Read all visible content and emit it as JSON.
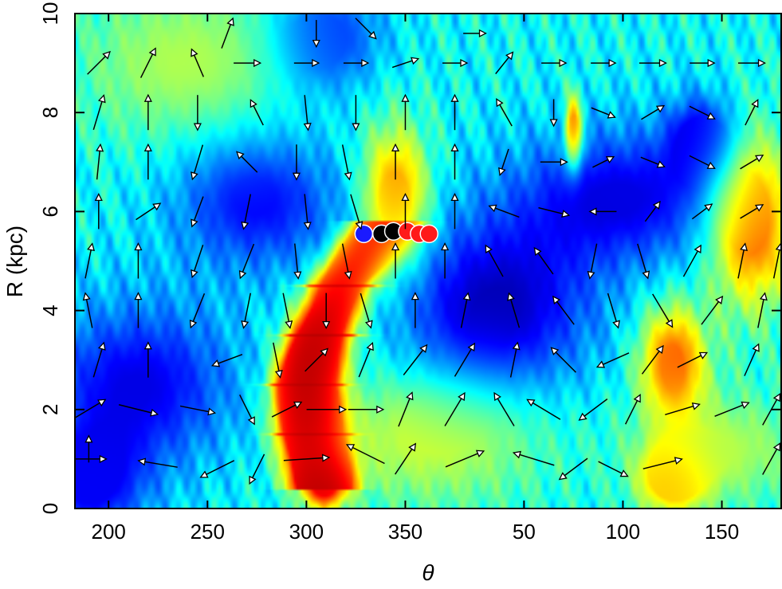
{
  "chart_data": {
    "type": "heatmap",
    "title": "",
    "xlabel": "θ",
    "ylabel": "R (kpc)",
    "x_range_deg": [
      183,
      180
    ],
    "x_axis_wraps_at": 360,
    "ylim": [
      0,
      10
    ],
    "x_tick_labels": [
      "200",
      "250",
      "300",
      "350",
      "50",
      "100",
      "150"
    ],
    "x_tick_values_deg": [
      200,
      250,
      300,
      350,
      50,
      100,
      150
    ],
    "y_tick_labels": [
      "0",
      "2",
      "4",
      "6",
      "8",
      "10"
    ],
    "y_tick_values": [
      0,
      2,
      4,
      6,
      8,
      10
    ],
    "colormap": "jet",
    "background_level": 0.38,
    "features": [
      {
        "kind": "ridge",
        "path": [
          [
            308,
            0.4
          ],
          [
            303,
            1.5
          ],
          [
            300,
            2.5
          ],
          [
            308,
            3.5
          ],
          [
            317,
            4.5
          ],
          [
            330,
            5.3
          ],
          [
            340,
            5.8
          ]
        ],
        "width_deg": 10,
        "level": 0.97
      },
      {
        "kind": "blob",
        "theta": 300,
        "R": 2.3,
        "sigma_deg": 9,
        "sigma_R": 0.8,
        "level": 0.99
      },
      {
        "kind": "blob",
        "theta": 309,
        "R": 0.5,
        "sigma_deg": 8,
        "sigma_R": 0.35,
        "level": 0.95
      },
      {
        "kind": "blob",
        "theta": 190,
        "R": 0.5,
        "sigma_deg": 20,
        "sigma_R": 0.8,
        "level": 0.12
      },
      {
        "kind": "blob",
        "theta": 215,
        "R": 2.5,
        "sigma_deg": 35,
        "sigma_R": 1.2,
        "level": 0.1
      },
      {
        "kind": "blob",
        "theta": 275,
        "R": 6.2,
        "sigma_deg": 30,
        "sigma_R": 1.0,
        "level": 0.12
      },
      {
        "kind": "blob",
        "theta": 35,
        "R": 4.0,
        "sigma_deg": 35,
        "sigma_R": 1.3,
        "level": 0.05
      },
      {
        "kind": "blob",
        "theta": 100,
        "R": 6.3,
        "sigma_deg": 40,
        "sigma_R": 1.0,
        "level": 0.1
      },
      {
        "kind": "blob",
        "theta": 140,
        "R": 7.5,
        "sigma_deg": 12,
        "sigma_R": 0.6,
        "level": 0.1
      },
      {
        "kind": "blob",
        "theta": 310,
        "R": 9.5,
        "sigma_deg": 20,
        "sigma_R": 0.8,
        "level": 0.15
      },
      {
        "kind": "blob",
        "theta": 345,
        "R": 6.3,
        "sigma_deg": 12,
        "sigma_R": 1.0,
        "level": 0.78
      },
      {
        "kind": "blob",
        "theta": 165,
        "R": 5.8,
        "sigma_deg": 15,
        "sigma_R": 1.2,
        "level": 0.85
      },
      {
        "kind": "blob",
        "theta": 125,
        "R": 3.0,
        "sigma_deg": 12,
        "sigma_R": 0.8,
        "level": 0.8
      },
      {
        "kind": "blob",
        "theta": 125,
        "R": 0.6,
        "sigma_deg": 12,
        "sigma_R": 0.5,
        "level": 0.72
      },
      {
        "kind": "blob",
        "theta": 75,
        "R": 7.6,
        "sigma_deg": 3,
        "sigma_R": 0.5,
        "level": 0.9
      },
      {
        "kind": "blob",
        "theta": 5,
        "R": 1.5,
        "sigma_deg": 40,
        "sigma_R": 1.0,
        "level": 0.6
      },
      {
        "kind": "blob",
        "theta": 240,
        "R": 9.0,
        "sigma_deg": 40,
        "sigma_R": 1.2,
        "level": 0.55
      },
      {
        "kind": "blob",
        "theta": 150,
        "R": 1.2,
        "sigma_deg": 30,
        "sigma_R": 0.8,
        "level": 0.55
      }
    ],
    "markers": [
      {
        "color": "#1a1aff",
        "theta": 329,
        "R": 5.55
      },
      {
        "color": "#000000",
        "theta": 338,
        "R": 5.55
      },
      {
        "color": "#000000",
        "theta": 344,
        "R": 5.6
      },
      {
        "color": "#ff1a1a",
        "theta": 351,
        "R": 5.6
      },
      {
        "color": "#ff1a1a",
        "theta": 357,
        "R": 5.55
      },
      {
        "color": "#ff1a1a",
        "theta": 362,
        "R": 5.55
      }
    ],
    "vector_field": {
      "description": "velocity arrows, direction in plot frame",
      "arrows": [
        [
          190,
          1.0,
          1.0,
          0.0
        ],
        [
          190,
          1.2,
          0.0,
          0.6
        ],
        [
          225,
          0.9,
          -1.2,
          0.2
        ],
        [
          255,
          0.8,
          -1.0,
          -0.5
        ],
        [
          275,
          0.8,
          -0.4,
          -0.8
        ],
        [
          300,
          1.0,
          1.5,
          0.1
        ],
        [
          330,
          1.1,
          -1.2,
          0.6
        ],
        [
          350,
          1.0,
          0.6,
          0.9
        ],
        [
          20,
          1.0,
          1.2,
          0.5
        ],
        [
          55,
          1.0,
          -1.3,
          0.4
        ],
        [
          75,
          0.8,
          -0.8,
          -0.6
        ],
        [
          95,
          0.8,
          0.8,
          -0.4
        ],
        [
          120,
          0.9,
          1.2,
          0.3
        ],
        [
          150,
          0.9,
          0.0,
          0.0
        ],
        [
          175,
          1.0,
          0.5,
          0.9
        ],
        [
          190,
          2.0,
          1.0,
          0.6
        ],
        [
          215,
          2.0,
          1.2,
          -0.3
        ],
        [
          245,
          2.0,
          1.0,
          -0.2
        ],
        [
          270,
          2.0,
          0.4,
          -0.8
        ],
        [
          290,
          2.0,
          0.8,
          0.4
        ],
        [
          310,
          2.0,
          1.2,
          0.0
        ],
        [
          330,
          2.0,
          1.0,
          0.0
        ],
        [
          350,
          2.0,
          0.4,
          1.0
        ],
        [
          15,
          2.0,
          0.6,
          1.0
        ],
        [
          40,
          2.0,
          -0.6,
          1.0
        ],
        [
          60,
          2.0,
          -1.0,
          0.6
        ],
        [
          85,
          2.0,
          -0.8,
          -0.6
        ],
        [
          105,
          2.0,
          0.4,
          0.8
        ],
        [
          130,
          2.0,
          1.0,
          0.3
        ],
        [
          155,
          2.0,
          1.0,
          0.4
        ],
        [
          175,
          2.0,
          0.5,
          0.9
        ],
        [
          195,
          3.0,
          0.3,
          1.0
        ],
        [
          220,
          3.0,
          0.0,
          1.0
        ],
        [
          260,
          3.0,
          -0.8,
          -0.3
        ],
        [
          285,
          3.0,
          0.2,
          -1.0
        ],
        [
          305,
          3.0,
          0.6,
          0.6
        ],
        [
          330,
          3.0,
          0.4,
          1.0
        ],
        [
          355,
          3.0,
          0.7,
          0.9
        ],
        [
          20,
          3.0,
          0.6,
          1.0
        ],
        [
          45,
          3.0,
          0.2,
          1.0
        ],
        [
          70,
          3.0,
          -0.7,
          0.7
        ],
        [
          95,
          3.0,
          -0.9,
          -0.4
        ],
        [
          115,
          3.0,
          0.6,
          0.8
        ],
        [
          135,
          3.0,
          0.8,
          0.4
        ],
        [
          165,
          3.0,
          0.4,
          0.9
        ],
        [
          190,
          4.0,
          -0.2,
          1.0
        ],
        [
          215,
          4.0,
          0.0,
          1.0
        ],
        [
          245,
          4.0,
          -0.4,
          -1.0
        ],
        [
          270,
          4.0,
          -0.2,
          -1.0
        ],
        [
          290,
          4.0,
          0.2,
          -1.0
        ],
        [
          310,
          4.0,
          0.0,
          -1.0
        ],
        [
          330,
          4.0,
          0.3,
          -1.0
        ],
        [
          355,
          4.0,
          0.0,
          1.0
        ],
        [
          20,
          4.0,
          0.2,
          1.0
        ],
        [
          45,
          4.0,
          -0.3,
          1.0
        ],
        [
          70,
          4.0,
          -0.6,
          0.8
        ],
        [
          95,
          4.0,
          0.3,
          -1.0
        ],
        [
          120,
          4.0,
          0.6,
          -1.0
        ],
        [
          145,
          4.0,
          0.6,
          0.8
        ],
        [
          170,
          4.0,
          0.2,
          1.0
        ],
        [
          190,
          5.0,
          0.2,
          1.0
        ],
        [
          215,
          5.0,
          0.0,
          1.0
        ],
        [
          245,
          5.0,
          -0.3,
          -0.9
        ],
        [
          270,
          5.0,
          -0.4,
          -1.0
        ],
        [
          295,
          5.0,
          0.1,
          -1.0
        ],
        [
          320,
          5.0,
          0.2,
          -1.0
        ],
        [
          345,
          5.0,
          0.0,
          1.0
        ],
        [
          10,
          5.0,
          0.0,
          1.0
        ],
        [
          35,
          5.0,
          -0.5,
          0.9
        ],
        [
          60,
          5.0,
          -0.5,
          0.7
        ],
        [
          85,
          5.0,
          -0.2,
          -1.0
        ],
        [
          110,
          5.0,
          0.3,
          -1.0
        ],
        [
          135,
          5.0,
          0.5,
          0.9
        ],
        [
          160,
          5.0,
          0.2,
          1.0
        ],
        [
          178,
          5.0,
          0.2,
          1.0
        ],
        [
          195,
          6.0,
          0.0,
          1.0
        ],
        [
          220,
          6.0,
          0.6,
          0.4
        ],
        [
          245,
          6.0,
          -0.3,
          -0.8
        ],
        [
          270,
          6.0,
          -0.2,
          -1.0
        ],
        [
          300,
          6.0,
          0.1,
          -1.0
        ],
        [
          325,
          6.0,
          0.3,
          -1.0
        ],
        [
          350,
          6.0,
          0.0,
          1.0
        ],
        [
          15,
          6.0,
          0.0,
          1.0
        ],
        [
          40,
          6.0,
          -0.8,
          0.3
        ],
        [
          65,
          6.0,
          0.8,
          -0.2
        ],
        [
          90,
          6.0,
          -0.6,
          0.0
        ],
        [
          115,
          6.0,
          0.3,
          0.4
        ],
        [
          140,
          6.0,
          0.4,
          0.3
        ],
        [
          165,
          6.0,
          0.5,
          0.3
        ],
        [
          195,
          7.0,
          0.1,
          1.0
        ],
        [
          220,
          7.0,
          0.0,
          1.0
        ],
        [
          245,
          7.0,
          -0.3,
          -1.0
        ],
        [
          270,
          7.0,
          -0.5,
          0.5
        ],
        [
          295,
          7.0,
          0.0,
          -1.0
        ],
        [
          320,
          7.0,
          0.2,
          -1.0
        ],
        [
          345,
          7.0,
          0.0,
          1.0
        ],
        [
          15,
          7.0,
          0.0,
          1.0
        ],
        [
          40,
          7.0,
          -0.2,
          -0.6
        ],
        [
          65,
          7.0,
          0.6,
          0.0
        ],
        [
          90,
          7.0,
          0.4,
          0.2
        ],
        [
          115,
          7.0,
          0.5,
          -0.2
        ],
        [
          140,
          7.0,
          0.6,
          -0.3
        ],
        [
          165,
          7.0,
          0.5,
          0.3
        ],
        [
          195,
          8.0,
          0.3,
          1.0
        ],
        [
          220,
          8.0,
          0.0,
          1.0
        ],
        [
          245,
          8.0,
          0.0,
          -1.0
        ],
        [
          275,
          8.0,
          -0.3,
          0.6
        ],
        [
          300,
          8.0,
          0.1,
          -1.0
        ],
        [
          325,
          8.0,
          0.0,
          -1.0
        ],
        [
          350,
          8.0,
          0.0,
          1.0
        ],
        [
          15,
          8.0,
          0.0,
          1.0
        ],
        [
          40,
          8.0,
          -0.4,
          0.7
        ],
        [
          65,
          8.0,
          0.0,
          -0.6
        ],
        [
          90,
          8.0,
          0.5,
          -0.2
        ],
        [
          115,
          8.0,
          0.5,
          0.3
        ],
        [
          140,
          8.0,
          0.6,
          -0.3
        ],
        [
          165,
          8.0,
          0.3,
          0.6
        ],
        [
          195,
          9.0,
          0.6,
          0.6
        ],
        [
          220,
          9.0,
          0.4,
          0.8
        ],
        [
          245,
          9.0,
          -0.3,
          0.7
        ],
        [
          270,
          9.0,
          0.6,
          0.0
        ],
        [
          300,
          9.0,
          0.5,
          0.0
        ],
        [
          325,
          9.0,
          0.5,
          0.0
        ],
        [
          350,
          9.0,
          0.6,
          0.2
        ],
        [
          15,
          9.0,
          0.5,
          0.0
        ],
        [
          40,
          9.0,
          0.4,
          0.5
        ],
        [
          65,
          9.0,
          0.5,
          0.0
        ],
        [
          90,
          9.0,
          0.5,
          0.0
        ],
        [
          115,
          9.0,
          0.6,
          0.0
        ],
        [
          140,
          9.0,
          0.5,
          0.0
        ],
        [
          165,
          9.0,
          0.6,
          0.0
        ],
        [
          260,
          9.6,
          0.3,
          0.8
        ],
        [
          305,
          9.6,
          0.0,
          -0.6
        ],
        [
          330,
          9.7,
          0.5,
          -0.5
        ],
        [
          25,
          9.6,
          0.4,
          0.0
        ],
        [
          120,
          9.7,
          0.0,
          0.0
        ]
      ]
    }
  }
}
